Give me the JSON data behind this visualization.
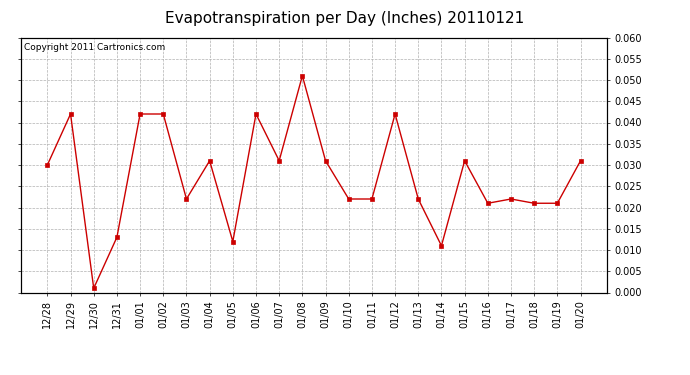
{
  "title": "Evapotranspiration per Day (Inches) 20110121",
  "copyright": "Copyright 2011 Cartronics.com",
  "x_labels": [
    "12/28",
    "12/29",
    "12/30",
    "12/31",
    "01/01",
    "01/02",
    "01/03",
    "01/04",
    "01/05",
    "01/06",
    "01/07",
    "01/08",
    "01/09",
    "01/10",
    "01/11",
    "01/12",
    "01/13",
    "01/14",
    "01/15",
    "01/16",
    "01/17",
    "01/18",
    "01/19",
    "01/20"
  ],
  "y_values": [
    0.03,
    0.042,
    0.001,
    0.013,
    0.042,
    0.042,
    0.022,
    0.031,
    0.012,
    0.042,
    0.031,
    0.051,
    0.031,
    0.022,
    0.022,
    0.042,
    0.022,
    0.011,
    0.031,
    0.021,
    0.022,
    0.021,
    0.021,
    0.031
  ],
  "line_color": "#cc0000",
  "marker_color": "#cc0000",
  "background_color": "#ffffff",
  "grid_color": "#b0b0b0",
  "ylim": [
    0.0,
    0.06
  ],
  "ytick_step": 0.005,
  "title_fontsize": 11,
  "copyright_fontsize": 6.5,
  "tick_fontsize": 7
}
